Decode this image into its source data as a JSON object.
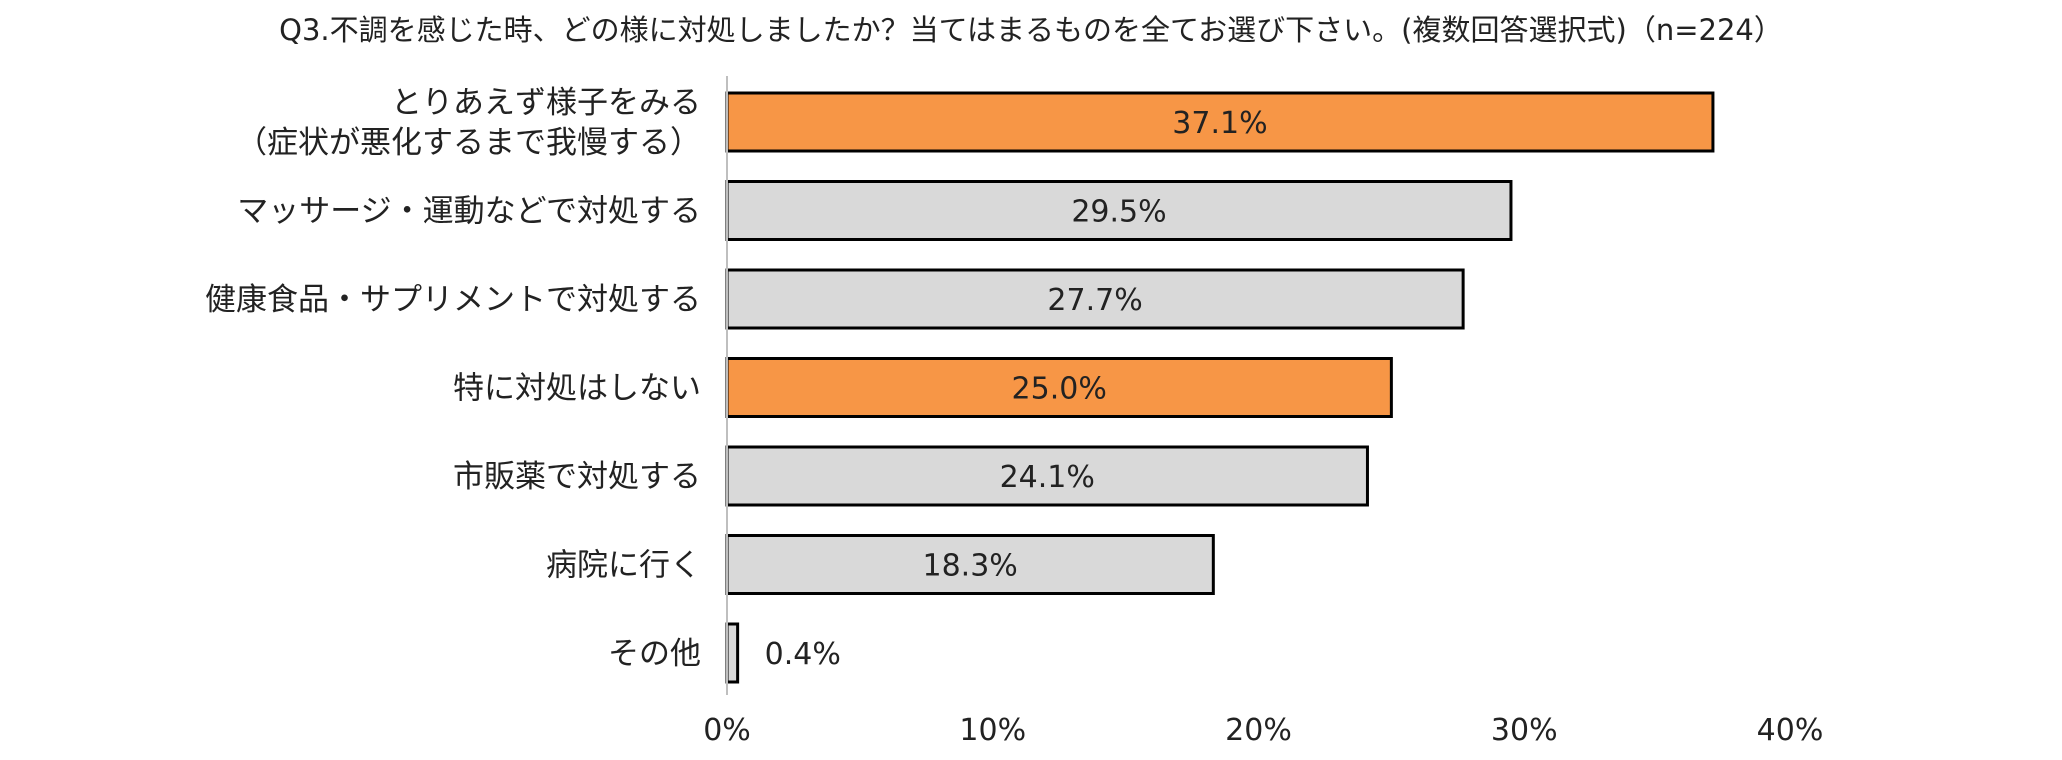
{
  "chart_data": {
    "type": "bar",
    "orientation": "horizontal",
    "title": "Q3.不調を感じた時、どの様に対処しましたか？当てはまるものを全てお選び下さい。(複数回答選択式)（n=224）",
    "categories": [
      [
        "とりあえず様子をみる",
        "（症状が悪化するまで我慢する）"
      ],
      [
        "マッサージ・運動などで対処する"
      ],
      [
        "健康食品・サプリメントで対処する"
      ],
      [
        "特に対処はしない"
      ],
      [
        "市販薬で対処する"
      ],
      [
        "病院に行く"
      ],
      [
        "その他"
      ]
    ],
    "values": [
      37.1,
      29.5,
      27.7,
      25.0,
      24.1,
      18.3,
      0.4
    ],
    "value_labels": [
      "37.1%",
      "29.5%",
      "27.7%",
      "25.0%",
      "24.1%",
      "18.3%",
      "0.4%"
    ],
    "highlight": [
      true,
      false,
      false,
      true,
      false,
      false,
      false
    ],
    "colors": {
      "highlight": "#F79646",
      "normal": "#D9D9D9",
      "border": "#000000",
      "axis": "#BFBFBF"
    },
    "xlim": [
      0,
      40
    ],
    "xticks": [
      0,
      10,
      20,
      30,
      40
    ],
    "xtick_labels": [
      "0%",
      "10%",
      "20%",
      "30%",
      "40%"
    ],
    "xlabel": "",
    "ylabel": "",
    "grid": false,
    "legend": "none"
  }
}
